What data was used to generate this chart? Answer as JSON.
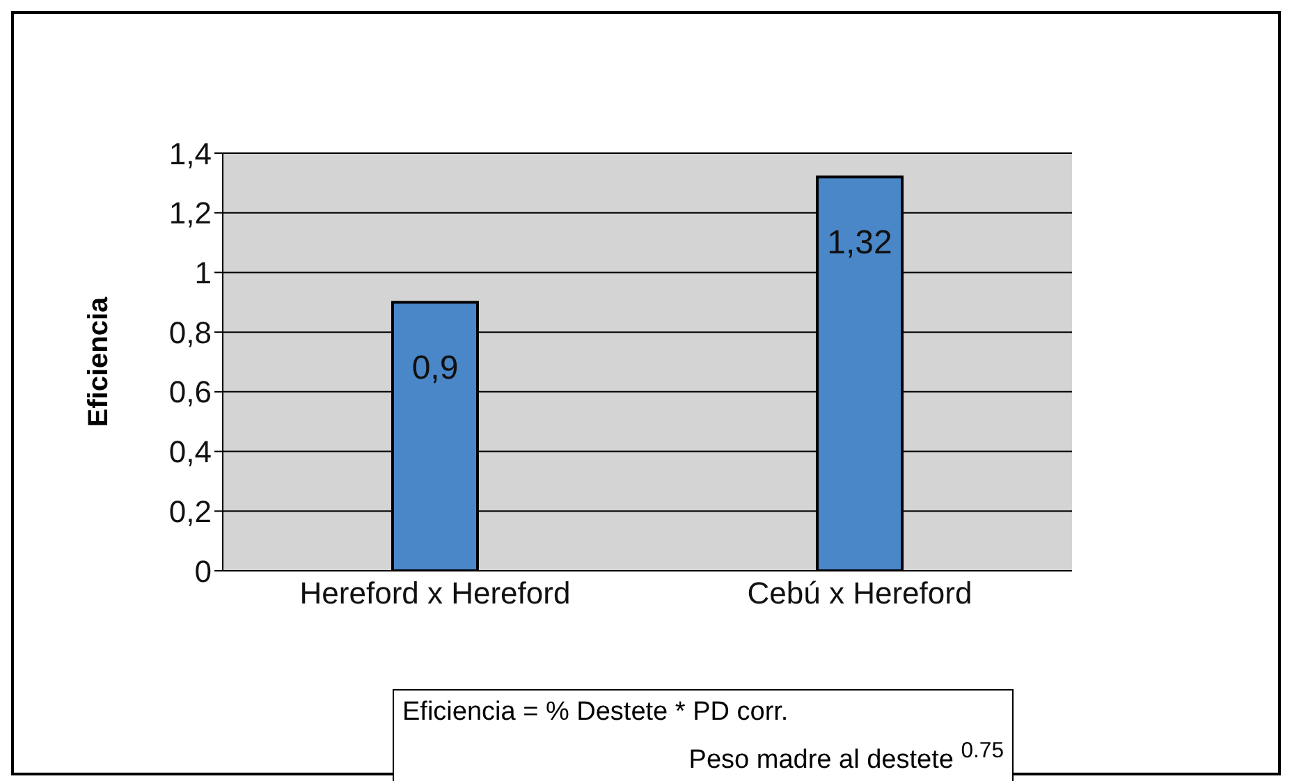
{
  "chart_data": {
    "type": "bar",
    "ylabel": "Eficiencia",
    "categories": [
      "Hereford x Hereford",
      "Cebú x Hereford"
    ],
    "values": [
      0.9,
      1.32
    ],
    "color": "#4a87c8",
    "value_labels": [
      "0,9",
      "1,32"
    ],
    "ylim": [
      0,
      1.4
    ],
    "yticks": [
      0,
      {
        "value": 0.2,
        "label": "0,2"
      },
      {
        "value": 0.4,
        "label": "0,4"
      },
      {
        "value": 0.6,
        "label": "0,6"
      },
      {
        "value": 0.8,
        "label": "0,8"
      },
      1,
      {
        "value": 1.2,
        "label": "1,2"
      },
      {
        "value": 1.4,
        "label": "1,4"
      }
    ],
    "grid": "y",
    "legend": false,
    "annotations": [
      "Eficiencia = % Destete * PD corr.",
      "Peso madre al destete $^{0.75}$"
    ]
  }
}
